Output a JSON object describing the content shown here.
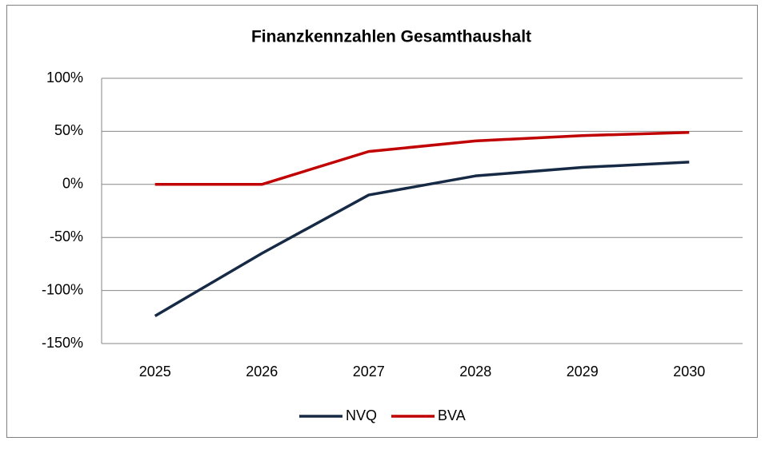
{
  "chart_data": {
    "type": "line",
    "title": "Finanzkennzahlen Gesamthaushalt",
    "categories": [
      "2025",
      "2026",
      "2027",
      "2028",
      "2029",
      "2030"
    ],
    "series": [
      {
        "name": "NVQ",
        "color": "#172a45",
        "values": [
          -124,
          -65,
          -10,
          8,
          16,
          21
        ]
      },
      {
        "name": "BVA",
        "color": "#c00000",
        "values": [
          0,
          0,
          31,
          41,
          46,
          49
        ]
      }
    ],
    "ylim": [
      -150,
      100
    ],
    "yticks": [
      {
        "value": -150,
        "label": "-150%"
      },
      {
        "value": -100,
        "label": "-100%"
      },
      {
        "value": -50,
        "label": "-50%"
      },
      {
        "value": 0,
        "label": "0%"
      },
      {
        "value": 50,
        "label": "50%"
      },
      {
        "value": 100,
        "label": "100%"
      }
    ],
    "grid": true,
    "legend": "bottom"
  }
}
